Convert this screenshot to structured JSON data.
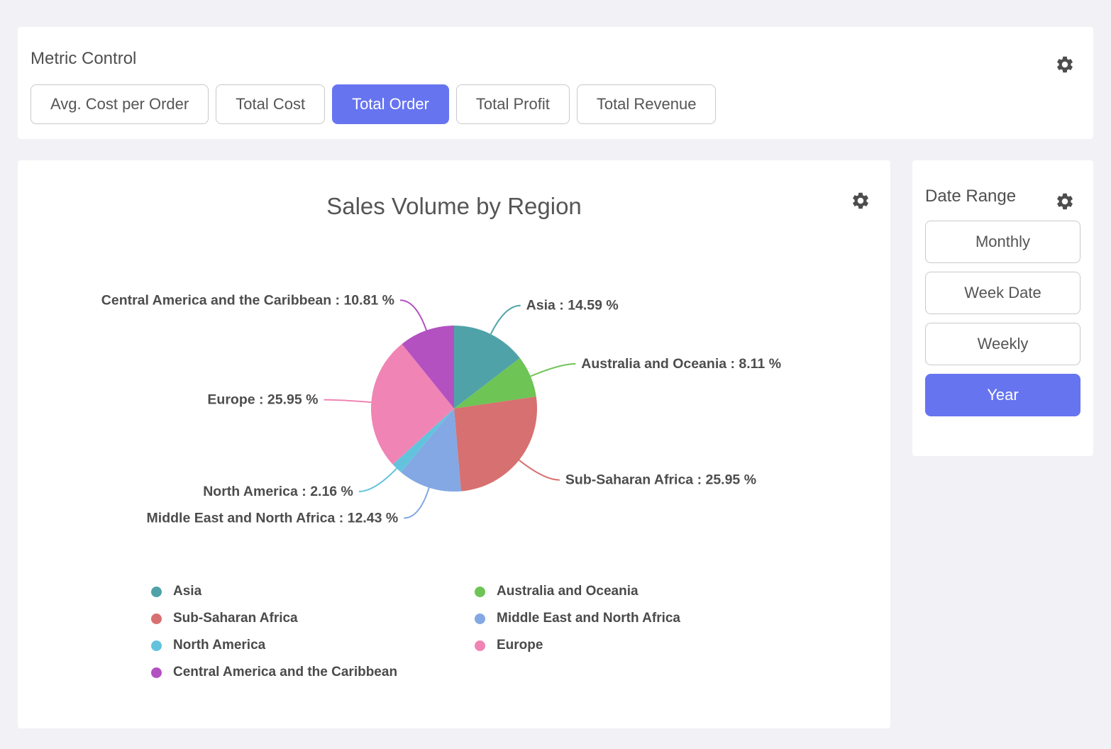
{
  "colors": {
    "accent": "#6674f0"
  },
  "icons": {
    "settings": "gear-icon"
  },
  "metric_control": {
    "title": "Metric Control",
    "buttons": [
      {
        "label": "Avg. Cost per Order",
        "selected": false
      },
      {
        "label": "Total Cost",
        "selected": false
      },
      {
        "label": "Total Order",
        "selected": true
      },
      {
        "label": "Total Profit",
        "selected": false
      },
      {
        "label": "Total Revenue",
        "selected": false
      }
    ]
  },
  "date_range": {
    "title": "Date Range",
    "buttons": [
      {
        "label": "Monthly",
        "selected": false
      },
      {
        "label": "Week Date",
        "selected": false
      },
      {
        "label": "Weekly",
        "selected": false
      },
      {
        "label": "Year",
        "selected": true
      }
    ]
  },
  "chart_data": {
    "type": "pie",
    "title": "Sales Volume by Region",
    "unit": "%",
    "start_angle": "top",
    "clockwise": true,
    "label_format": "{label} : {value} %",
    "slices": [
      {
        "label": "Asia",
        "value": 14.59,
        "color": "#4fa3a8"
      },
      {
        "label": "Australia and Oceania",
        "value": 8.11,
        "color": "#6ec455"
      },
      {
        "label": "Sub-Saharan Africa",
        "value": 25.95,
        "color": "#d77070"
      },
      {
        "label": "Middle East and North Africa",
        "value": 12.43,
        "color": "#83a8e3"
      },
      {
        "label": "North America",
        "value": 2.16,
        "color": "#63c3dd"
      },
      {
        "label": "Europe",
        "value": 25.95,
        "color": "#f084b4"
      },
      {
        "label": "Central America and the Caribbean",
        "value": 10.81,
        "color": "#b351c1"
      }
    ],
    "legend": {
      "position": "bottom",
      "columns": 2,
      "order": [
        "Asia",
        "Australia and Oceania",
        "Sub-Saharan Africa",
        "Middle East and North Africa",
        "North America",
        "Europe",
        "Central America and the Caribbean"
      ]
    }
  }
}
